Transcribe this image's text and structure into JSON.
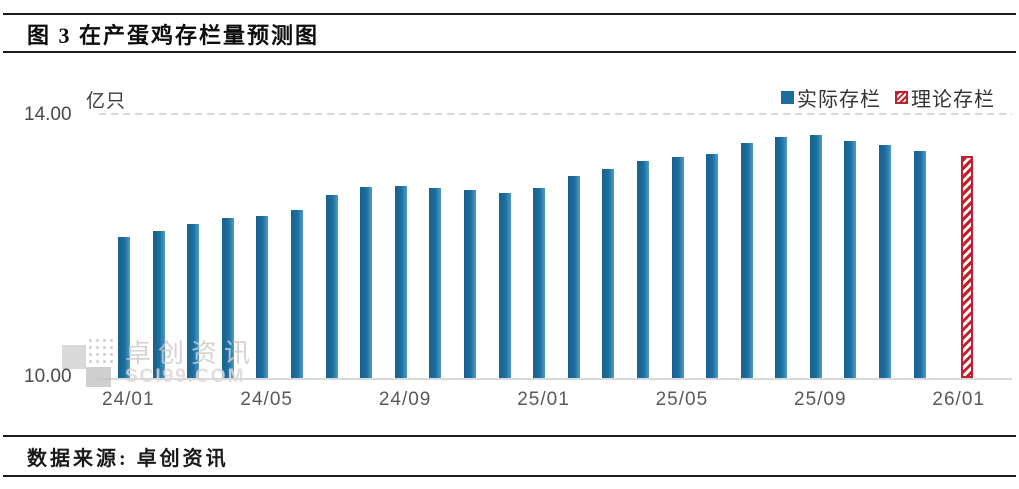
{
  "header": {
    "title": "图 3 在产蛋鸡存栏量预测图"
  },
  "footer": {
    "source": "数据来源: 卓创资讯"
  },
  "watermark": {
    "line1": "卓创资讯",
    "line2": "SCI99.COM"
  },
  "colors": {
    "actual_bar": "#1C6EA0",
    "theoretical_bar": "#C2202E",
    "gridline": "#D8D8D8",
    "axis_line": "#D9D9D9"
  },
  "chart_data": {
    "type": "bar",
    "title": "在产蛋鸡存栏量预测图",
    "unit_label": "亿只",
    "ylabel": "亿只",
    "xlabel": "",
    "ylim": [
      10.0,
      14.0
    ],
    "grid": "dashed-top-only",
    "legend_position": "top-right",
    "yticks": [
      {
        "value": 14.0,
        "label": "14.00"
      },
      {
        "value": 10.0,
        "label": "10.00"
      }
    ],
    "categories": [
      "24/01",
      "24/02",
      "24/03",
      "24/04",
      "24/05",
      "24/06",
      "24/07",
      "24/08",
      "24/09",
      "24/10",
      "24/11",
      "24/12",
      "25/01",
      "25/02",
      "25/03",
      "25/04",
      "25/05",
      "25/06",
      "25/07",
      "25/08",
      "25/09",
      "25/10",
      "25/11",
      "25/12",
      "26/01"
    ],
    "xtick_labels": [
      "24/01",
      "24/05",
      "24/09",
      "25/01",
      "25/05",
      "25/09",
      "26/01"
    ],
    "series": [
      {
        "name": "实际存栏",
        "color": "#1C6EA0",
        "pattern": "solid",
        "values": [
          12.14,
          12.23,
          12.34,
          12.43,
          12.46,
          12.56,
          12.78,
          12.9,
          12.92,
          12.89,
          12.86,
          12.81,
          12.89,
          13.07,
          13.18,
          13.3,
          13.36,
          13.41,
          13.58,
          13.66,
          13.7,
          13.61,
          13.54,
          13.45,
          null
        ]
      },
      {
        "name": "理论存栏",
        "color": "#C2202E",
        "pattern": "diagonal-hatch",
        "values": [
          null,
          null,
          null,
          null,
          null,
          null,
          null,
          null,
          null,
          null,
          null,
          null,
          null,
          null,
          null,
          null,
          null,
          null,
          null,
          null,
          null,
          null,
          null,
          null,
          13.37
        ]
      }
    ]
  }
}
